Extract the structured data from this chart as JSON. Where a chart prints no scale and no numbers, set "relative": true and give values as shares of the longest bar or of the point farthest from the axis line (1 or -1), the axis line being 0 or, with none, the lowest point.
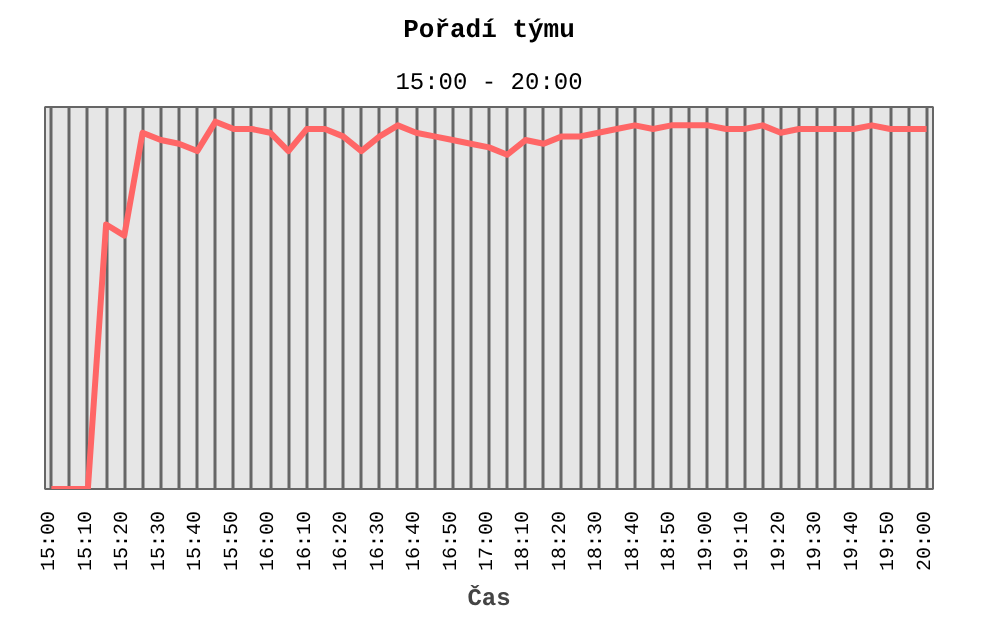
{
  "chart_data": {
    "type": "line",
    "title": "Pořadí týmu",
    "subtitle": "15:00 - 20:00",
    "xlabel": "Čas",
    "categories": [
      "15:00",
      null,
      "15:10",
      null,
      "15:20",
      null,
      "15:30",
      null,
      "15:40",
      null,
      "15:50",
      null,
      "16:00",
      null,
      "16:10",
      null,
      "16:20",
      null,
      "16:30",
      null,
      "16:40",
      null,
      "16:50",
      null,
      "17:00",
      null,
      "18:10",
      null,
      "18:20",
      null,
      "18:30",
      null,
      "18:40",
      null,
      "18:50",
      null,
      "19:00",
      null,
      "19:10",
      null,
      "19:20",
      null,
      "19:30",
      null,
      "19:40",
      null,
      "19:50",
      null,
      "20:00"
    ],
    "relative": true,
    "grid": "x",
    "marker": "none",
    "line_style": "solid",
    "series": [
      {
        "color": "#ff6666",
        "values": [
          0,
          0,
          0,
          0.72,
          0.69,
          0.97,
          0.95,
          0.94,
          0.92,
          1,
          0.98,
          0.98,
          0.97,
          0.92,
          0.98,
          0.98,
          0.96,
          0.92,
          0.96,
          0.99,
          0.97,
          0.96,
          0.95,
          0.94,
          0.93,
          0.91,
          0.95,
          0.94,
          0.96,
          0.96,
          0.97,
          0.98,
          0.99,
          0.98,
          0.99,
          0.99,
          0.99,
          0.98,
          0.98,
          0.99,
          0.97,
          0.98,
          0.98,
          0.98,
          0.98,
          0.99,
          0.98,
          0.98,
          0.98
        ]
      }
    ]
  }
}
